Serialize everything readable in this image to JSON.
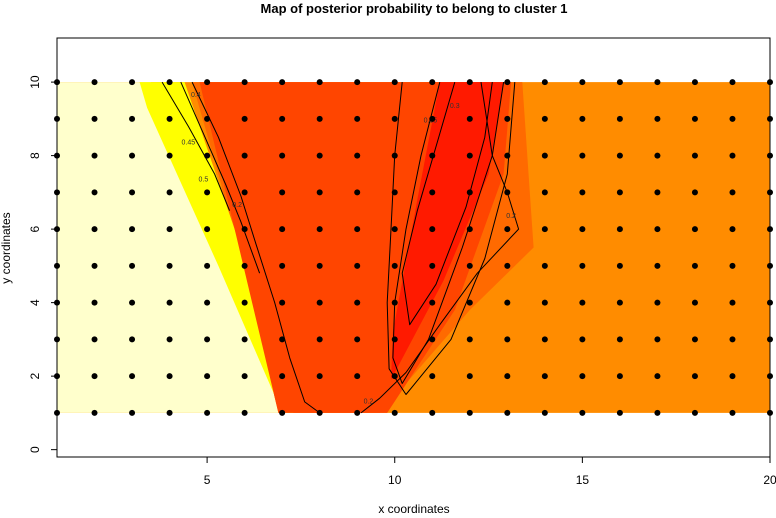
{
  "chart_data": {
    "type": "heatmap",
    "title": "Map of posterior probability to belong to cluster  1",
    "xlabel": "x coordinates",
    "ylabel": "y coordinates",
    "xlim": [
      1,
      20
    ],
    "ylim": [
      -0.2,
      11.2
    ],
    "field_extent": {
      "x": [
        1,
        20
      ],
      "y": [
        1,
        10
      ]
    },
    "x_ticks": [
      5,
      10,
      15,
      20
    ],
    "y_ticks": [
      0,
      2,
      4,
      6,
      8,
      10
    ],
    "grid_points": {
      "x": [
        1,
        20,
        1
      ],
      "y": [
        1,
        10,
        1
      ]
    },
    "colors": {
      "pale": "#FFFFCC",
      "yellow": "#FFFF00",
      "orange": "#FF8C00",
      "dark_orange": "#FF6A00",
      "red_orange": "#FF4500",
      "red": "#FF1A00",
      "line": "#000000",
      "point": "#000000"
    },
    "regions": [
      {
        "level": "0.4-0.5",
        "color": "yellow",
        "polygon": [
          [
            3.2,
            10
          ],
          [
            4.4,
            10
          ],
          [
            6.4,
            4
          ],
          [
            7.3,
            1
          ],
          [
            7.0,
            1
          ],
          [
            5.3,
            5
          ],
          [
            3.4,
            9.3
          ]
        ]
      },
      {
        "level": "0.1-0.3",
        "color": "red_orange",
        "polygon": [
          [
            4.8,
            10
          ],
          [
            13.1,
            10
          ],
          [
            12.9,
            7.5
          ],
          [
            11.6,
            3.8
          ],
          [
            9.8,
            1
          ],
          [
            6.9,
            1
          ],
          [
            6.2,
            4
          ],
          [
            5.5,
            7
          ]
        ]
      },
      {
        "level": "0.3-0.35",
        "color": "red",
        "polygon": [
          [
            11.2,
            10
          ],
          [
            12.9,
            10
          ],
          [
            12.5,
            7.5
          ],
          [
            11.3,
            4.6
          ],
          [
            9.9,
            1.9
          ],
          [
            9.95,
            3.2
          ],
          [
            10.6,
            6.8
          ]
        ]
      }
    ],
    "contours": [
      {
        "label": "0.5",
        "points": [
          [
            3.8,
            10
          ],
          [
            4.5,
            8.8
          ],
          [
            5.2,
            7.5
          ],
          [
            5.6,
            6.5
          ]
        ]
      },
      {
        "label": "0.45",
        "points": [
          [
            4.3,
            10
          ],
          [
            4.9,
            8.6
          ],
          [
            5.5,
            7.2
          ],
          [
            5.9,
            6.2
          ],
          [
            6.4,
            4.8
          ]
        ]
      },
      {
        "label": "0.4",
        "points": [
          [
            4.6,
            10
          ],
          [
            5.3,
            8.5
          ],
          [
            5.9,
            6.9
          ],
          [
            6.3,
            5.6
          ],
          [
            6.8,
            4.0
          ],
          [
            7.2,
            2.5
          ],
          [
            7.6,
            1.3
          ],
          [
            8.0,
            1
          ]
        ]
      },
      {
        "label": "0.35",
        "points": [
          [
            11.2,
            10
          ],
          [
            10.7,
            8
          ],
          [
            10.3,
            6
          ],
          [
            10.0,
            4
          ],
          [
            9.95,
            2.5
          ],
          [
            10.2,
            1.8
          ],
          [
            10.9,
            3.0
          ],
          [
            11.8,
            5.5
          ],
          [
            12.6,
            8.0
          ],
          [
            12.9,
            10
          ]
        ]
      },
      {
        "label": "0.3",
        "points": [
          [
            11.6,
            10
          ],
          [
            11.2,
            8.6
          ],
          [
            10.6,
            6.5
          ],
          [
            10.2,
            4.8
          ],
          [
            10.4,
            3.4
          ],
          [
            11.1,
            4.5
          ],
          [
            11.9,
            6.6
          ],
          [
            12.4,
            8.5
          ],
          [
            12.6,
            10
          ]
        ]
      },
      {
        "label": "0.25",
        "points": [
          [
            10.2,
            10
          ],
          [
            10.0,
            8
          ],
          [
            9.9,
            6
          ],
          [
            9.8,
            4
          ],
          [
            9.85,
            2.2
          ],
          [
            10.3,
            1.5
          ],
          [
            11.5,
            3.0
          ],
          [
            12.4,
            5.2
          ],
          [
            13.0,
            7.5
          ],
          [
            13.2,
            10
          ]
        ]
      },
      {
        "label": "0.2",
        "points": [
          [
            12.3,
            10
          ],
          [
            12.6,
            8
          ],
          [
            13.0,
            7.0
          ],
          [
            13.3,
            6.0
          ],
          [
            12.2,
            4.8
          ],
          [
            11.2,
            3.4
          ],
          [
            10.3,
            2.1
          ],
          [
            9.6,
            1.4
          ],
          [
            9.1,
            1
          ]
        ]
      }
    ],
    "contour_labels": [
      {
        "text": "0.2",
        "x": 5.8,
        "y": 6.6
      },
      {
        "text": "0.45",
        "x": 4.5,
        "y": 8.3
      },
      {
        "text": "0.5",
        "x": 4.9,
        "y": 7.3
      },
      {
        "text": "0.4",
        "x": 4.7,
        "y": 9.6
      },
      {
        "text": "0.35",
        "x": 10.95,
        "y": 8.9
      },
      {
        "text": "0.3",
        "x": 11.6,
        "y": 9.3
      },
      {
        "text": "0.2",
        "x": 13.1,
        "y": 6.3
      },
      {
        "text": "0.2",
        "x": 9.3,
        "y": 1.25
      }
    ]
  }
}
